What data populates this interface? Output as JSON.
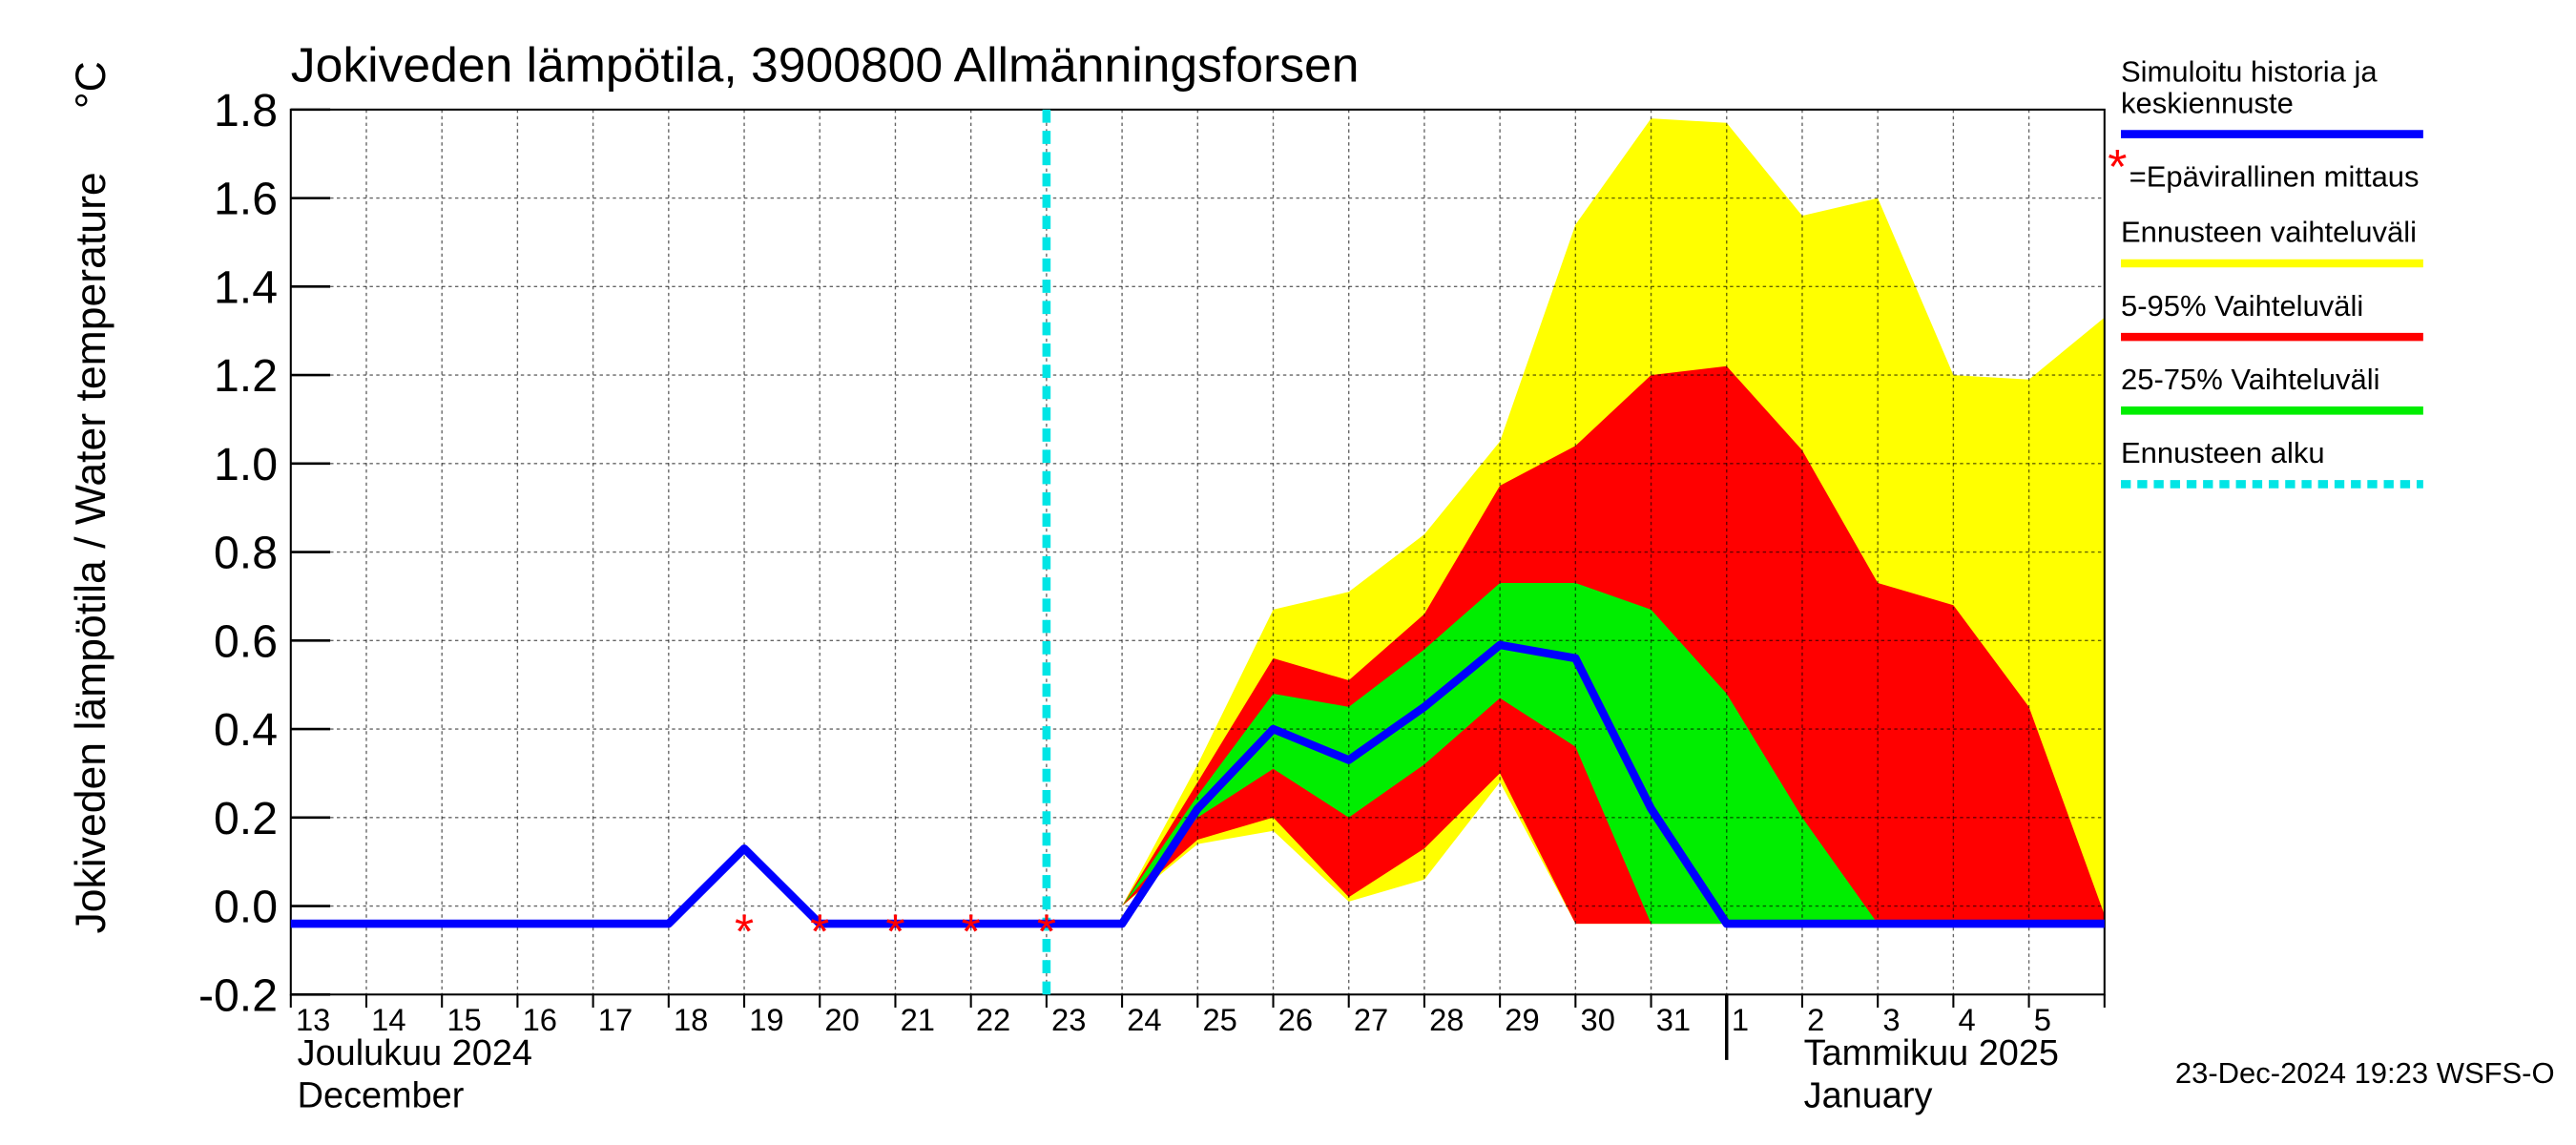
{
  "chart_data": {
    "type": "line",
    "title": "Jokiveden lämpötila, 3900800 Allmänningsforsen",
    "y_label": "Jokiveden lämpötila / Water temperature",
    "y_unit": "°C",
    "month_labels": [
      {
        "fi": "Joulukuu  2024",
        "en": "December"
      },
      {
        "fi": "Tammikuu  2025",
        "en": "January"
      }
    ],
    "timestamp": "23-Dec-2024 19:23 WSFS-O",
    "categories": [
      "13",
      "14",
      "15",
      "16",
      "17",
      "18",
      "19",
      "20",
      "21",
      "22",
      "23",
      "24",
      "25",
      "26",
      "27",
      "28",
      "29",
      "30",
      "31",
      "1",
      "2",
      "3",
      "4",
      "5",
      null
    ],
    "month_start": 19,
    "forecast_start": 10,
    "forecast_start_label": "Ennusteen alku",
    "forecast_start_color": "#00e5e5",
    "ylim": [
      -0.2,
      1.8
    ],
    "yticks": [
      {
        "value": -0.2,
        "label": "-0.2"
      },
      {
        "value": 0,
        "label": "0.0"
      },
      {
        "value": 0.2,
        "label": "0.2"
      },
      {
        "value": 0.4,
        "label": "0.4"
      },
      {
        "value": 0.6,
        "label": "0.6"
      },
      {
        "value": 0.8,
        "label": "0.8"
      },
      {
        "value": 1,
        "label": "1.0"
      },
      {
        "value": 1.2,
        "label": "1.2"
      },
      {
        "value": 1.4,
        "label": "1.4"
      },
      {
        "value": 1.6,
        "label": "1.6"
      },
      {
        "value": 1.8,
        "label": "1.8"
      }
    ],
    "grid": true,
    "bands": [
      {
        "name": "Ennusteen vaihteluväli",
        "color": "#ffff00",
        "upper": [
          null,
          null,
          null,
          null,
          null,
          null,
          null,
          null,
          null,
          null,
          null,
          0,
          0.32,
          0.67,
          0.71,
          0.84,
          1.05,
          1.54,
          1.78,
          1.77,
          1.56,
          1.6,
          1.2,
          1.19,
          1.33
        ],
        "lower": [
          null,
          null,
          null,
          null,
          null,
          null,
          null,
          null,
          null,
          null,
          null,
          0,
          0.14,
          0.17,
          0.01,
          0.06,
          0.28,
          -0.04,
          -0.04,
          -0.04,
          -0.04,
          -0.04,
          -0.04,
          -0.04,
          -0.04
        ]
      },
      {
        "name": "5-95% Vaihteluväli",
        "color": "#ff0000",
        "upper": [
          null,
          null,
          null,
          null,
          null,
          null,
          null,
          null,
          null,
          null,
          null,
          0,
          0.28,
          0.56,
          0.51,
          0.66,
          0.95,
          1.04,
          1.2,
          1.22,
          1.03,
          0.73,
          0.68,
          0.45,
          -0.02
        ],
        "lower": [
          null,
          null,
          null,
          null,
          null,
          null,
          null,
          null,
          null,
          null,
          null,
          0,
          0.15,
          0.2,
          0.02,
          0.13,
          0.3,
          -0.04,
          -0.04,
          -0.04,
          -0.04,
          -0.04,
          -0.04,
          -0.04,
          -0.04
        ]
      },
      {
        "name": "25-75% Vaihteluväli",
        "color": "#00ee00",
        "upper": [
          null,
          null,
          null,
          null,
          null,
          null,
          null,
          null,
          null,
          null,
          null,
          0,
          0.25,
          0.48,
          0.45,
          0.58,
          0.73,
          0.73,
          0.67,
          0.48,
          0.2,
          -0.04,
          -0.04,
          -0.04,
          -0.04
        ],
        "lower": [
          null,
          null,
          null,
          null,
          null,
          null,
          null,
          null,
          null,
          null,
          null,
          0,
          0.2,
          0.31,
          0.2,
          0.32,
          0.47,
          0.36,
          -0.04,
          -0.04,
          -0.04,
          -0.04,
          -0.04,
          -0.04,
          -0.04
        ]
      }
    ],
    "series": [
      {
        "name": "Simuloitu historia ja\nkeskiennuste",
        "color": "#0000ff",
        "values": [
          -0.04,
          -0.04,
          -0.04,
          -0.04,
          -0.04,
          -0.04,
          0.13,
          -0.04,
          -0.04,
          -0.04,
          -0.04,
          -0.04,
          0.22,
          0.4,
          0.33,
          0.45,
          0.59,
          0.56,
          0.22,
          -0.04,
          -0.04,
          -0.04,
          -0.04,
          -0.04,
          -0.04
        ]
      }
    ],
    "measurements": {
      "name": "=Epävirallinen mittaus",
      "marker": "*",
      "color": "#ff0000",
      "values": [
        null,
        null,
        null,
        null,
        null,
        null,
        -0.05,
        -0.05,
        -0.05,
        -0.05,
        -0.05,
        null,
        null,
        null,
        null,
        null,
        null,
        null,
        null,
        null,
        null,
        null,
        null,
        null,
        null
      ]
    }
  }
}
